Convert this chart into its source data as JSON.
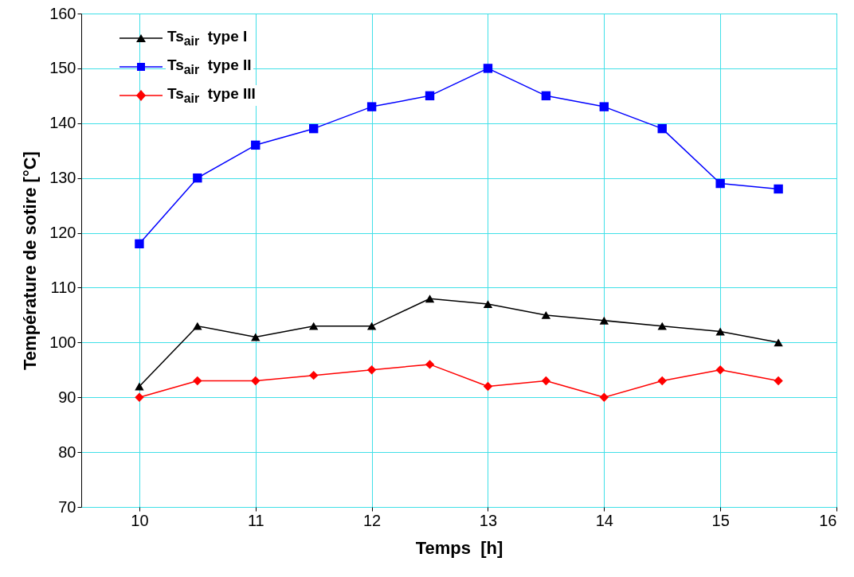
{
  "chart_data": {
    "type": "line",
    "xlabel": "Temps  [h]",
    "ylabel": "Température de sotire [°C]",
    "x": [
      10,
      10.5,
      11,
      11.5,
      12,
      12.5,
      13,
      13.5,
      14,
      14.5,
      15,
      15.5
    ],
    "xlim": [
      9.5,
      16
    ],
    "xticks": [
      10,
      11,
      12,
      13,
      14,
      15,
      16
    ],
    "ylim": [
      70,
      160
    ],
    "yticks": [
      70,
      80,
      90,
      100,
      110,
      120,
      130,
      140,
      150,
      160
    ],
    "grid": true,
    "legend": "top left",
    "line_style": "solid",
    "series": [
      {
        "name": "Ts$_{air}$  type I",
        "color": "#000000",
        "marker": "triangle",
        "values": [
          92,
          103,
          101,
          103,
          103,
          108,
          107,
          105,
          104,
          103,
          102,
          100
        ]
      },
      {
        "name": "Ts$_{air}$  type II",
        "color": "#0000ff",
        "marker": "square",
        "values": [
          118,
          130,
          136,
          139,
          143,
          145,
          150,
          145,
          143,
          139,
          129,
          128
        ]
      },
      {
        "name": "Ts$_{air}$  type III",
        "color": "#ff0000",
        "marker": "diamond",
        "values": [
          90,
          93,
          93,
          94,
          95,
          96,
          92,
          93,
          90,
          93,
          95,
          93
        ]
      }
    ]
  }
}
